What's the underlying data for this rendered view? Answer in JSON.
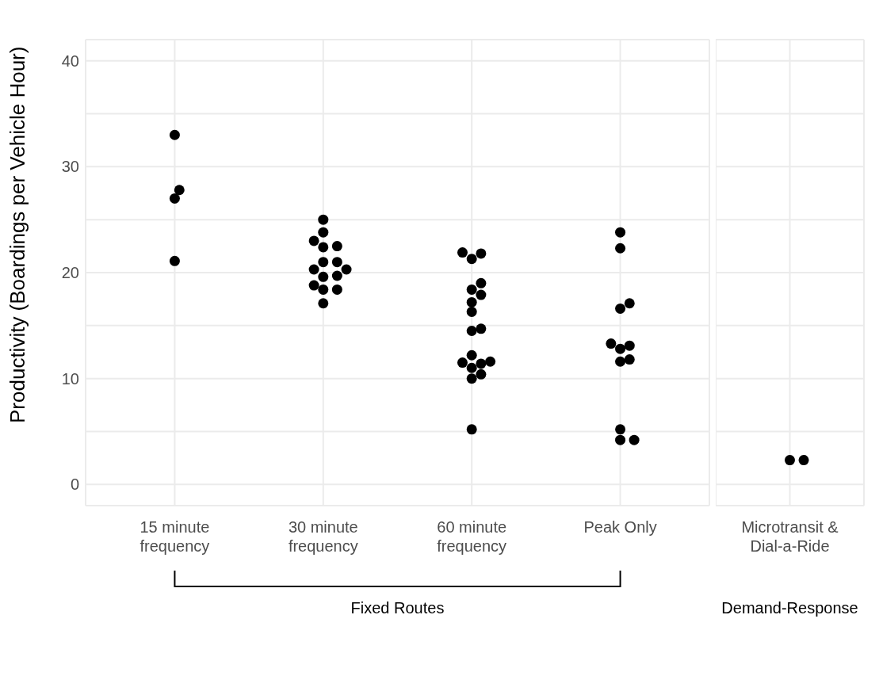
{
  "chart_data": [
    {
      "type": "scatter",
      "xlabel": "Fixed Routes",
      "ylabel": "Productivity (Boardings per Vehicle Hour)",
      "categories": [
        "15 minute frequency",
        "30 minute frequency",
        "60 minute frequency",
        "Peak Only"
      ],
      "series": [
        {
          "color": "#000000",
          "x": [
            "15 minute frequency",
            "15 minute frequency",
            "15 minute frequency",
            "15 minute frequency",
            "30 minute frequency",
            "30 minute frequency",
            "30 minute frequency",
            "30 minute frequency",
            "30 minute frequency",
            "30 minute frequency",
            "30 minute frequency",
            "30 minute frequency",
            "30 minute frequency",
            "30 minute frequency",
            "30 minute frequency",
            "30 minute frequency",
            "30 minute frequency",
            "30 minute frequency",
            "30 minute frequency",
            "60 minute frequency",
            "60 minute frequency",
            "60 minute frequency",
            "60 minute frequency",
            "60 minute frequency",
            "60 minute frequency",
            "60 minute frequency",
            "60 minute frequency",
            "60 minute frequency",
            "60 minute frequency",
            "60 minute frequency",
            "60 minute frequency",
            "60 minute frequency",
            "60 minute frequency",
            "60 minute frequency",
            "60 minute frequency",
            "60 minute frequency",
            "60 minute frequency",
            "Peak Only",
            "Peak Only",
            "Peak Only",
            "Peak Only",
            "Peak Only",
            "Peak Only",
            "Peak Only",
            "Peak Only",
            "Peak Only",
            "Peak Only",
            "Peak Only",
            "Peak Only"
          ],
          "values": [
            33.0,
            27.8,
            27.0,
            21.1,
            25.0,
            23.8,
            23.0,
            22.5,
            22.4,
            21.0,
            21.0,
            20.3,
            20.3,
            19.7,
            19.6,
            18.8,
            18.4,
            18.4,
            17.1,
            21.9,
            21.8,
            21.3,
            19.0,
            18.4,
            17.9,
            17.2,
            16.3,
            14.7,
            14.5,
            12.2,
            11.6,
            11.5,
            11.4,
            11.0,
            10.4,
            10.0,
            5.2,
            23.8,
            22.3,
            17.1,
            16.6,
            13.3,
            13.1,
            12.8,
            11.8,
            11.6,
            5.2,
            4.2,
            4.2
          ]
        }
      ],
      "ylim": [
        -2,
        42
      ],
      "yticks": [
        0,
        {
          "value": 5,
          "label": null
        },
        10,
        {
          "value": 15,
          "label": null
        },
        20,
        {
          "value": 25,
          "label": null
        },
        30,
        {
          "value": 35,
          "label": null
        },
        40
      ],
      "grid": true,
      "marker": "circle",
      "legend": false
    },
    {
      "type": "scatter",
      "xlabel": "Demand-Response",
      "categories": [
        "Microtransit & Dial-a-Ride"
      ],
      "series": [
        {
          "color": "#000000",
          "x": [
            "Microtransit & Dial-a-Ride",
            "Microtransit & Dial-a-Ride"
          ],
          "values": [
            2.3,
            2.3
          ]
        }
      ],
      "ylim": [
        -2,
        42
      ],
      "yticks": [
        0,
        {
          "value": 5,
          "label": null
        },
        10,
        {
          "value": 15,
          "label": null
        },
        20,
        {
          "value": 25,
          "label": null
        },
        30,
        {
          "value": 35,
          "label": null
        },
        40
      ],
      "grid": true,
      "marker": "circle",
      "legend": false,
      "tick_labels": "x"
    }
  ]
}
